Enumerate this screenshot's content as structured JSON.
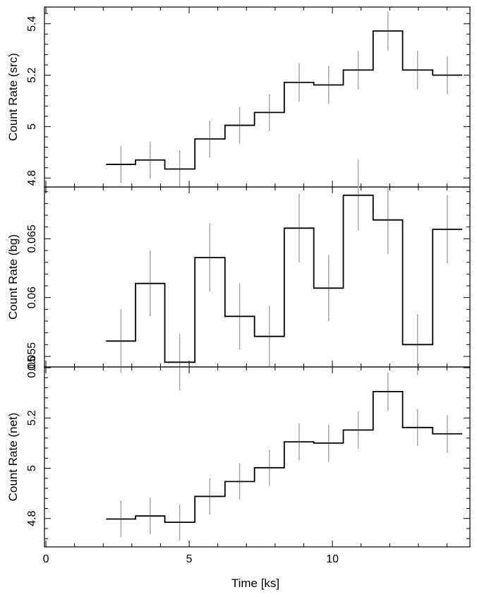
{
  "chart_data": [
    {
      "type": "line",
      "style": "step-with-error-bars",
      "ylabel": "Count Rate (src)",
      "ylim": [
        4.765,
        5.465
      ],
      "yticks": [
        4.8,
        5,
        5.2,
        5.4
      ],
      "ytick_labels": [
        "4.8",
        "5",
        "5.2",
        "5.4"
      ],
      "bin_edges": [
        2.1,
        3.13,
        4.15,
        5.2,
        6.25,
        7.28,
        8.32,
        9.35,
        10.38,
        11.42,
        12.45,
        13.5,
        14.53
      ],
      "x": [
        2.62,
        3.64,
        4.67,
        5.72,
        6.76,
        7.8,
        8.84,
        9.87,
        10.9,
        11.94,
        12.97,
        14.01
      ],
      "values": [
        4.853,
        4.87,
        4.835,
        4.952,
        5.005,
        5.055,
        5.172,
        5.162,
        5.22,
        5.372,
        5.22,
        5.2
      ],
      "errors": [
        0.072,
        0.072,
        0.072,
        0.072,
        0.072,
        0.072,
        0.074,
        0.074,
        0.074,
        0.076,
        0.074,
        0.074
      ]
    },
    {
      "type": "line",
      "style": "step-with-error-bars",
      "ylabel": "Count Rate (bg)",
      "ylim": [
        0.0541,
        0.0694
      ],
      "yticks": [
        0.055,
        0.06,
        0.065
      ],
      "ytick_labels": [
        "0.055",
        "0.06",
        "0.065"
      ],
      "overlap_tick_label": "0.05",
      "bin_edges": [
        2.1,
        3.13,
        4.15,
        5.2,
        6.25,
        7.28,
        8.32,
        9.35,
        10.38,
        11.42,
        12.45,
        13.5,
        14.53
      ],
      "x": [
        2.62,
        3.64,
        4.67,
        5.72,
        6.76,
        7.8,
        8.84,
        9.87,
        10.9,
        11.94,
        12.97,
        14.01
      ],
      "values": [
        0.0563,
        0.0612,
        0.0545,
        0.0634,
        0.0584,
        0.0567,
        0.0659,
        0.0608,
        0.0687,
        0.0666,
        0.056,
        0.0658
      ],
      "errors": [
        0.0027,
        0.0028,
        0.0024,
        0.0029,
        0.0028,
        0.0026,
        0.0029,
        0.0028,
        0.003,
        0.0029,
        0.0026,
        0.0029
      ]
    },
    {
      "type": "line",
      "style": "step-with-error-bars",
      "ylabel": "Count Rate (net)",
      "xlabel": "Time [ks]",
      "xlim": [
        -0.05,
        14.8
      ],
      "xticks": [
        0,
        5,
        10
      ],
      "xtick_labels": [
        "0",
        "5",
        "10"
      ],
      "ylim": [
        4.687,
        5.403
      ],
      "yticks": [
        4.8,
        5,
        5.2
      ],
      "ytick_labels": [
        "4.8",
        "5",
        "5.2"
      ],
      "bin_edges": [
        2.1,
        3.13,
        4.15,
        5.2,
        6.25,
        7.28,
        8.32,
        9.35,
        10.38,
        11.42,
        12.45,
        13.5,
        14.53
      ],
      "x": [
        2.62,
        3.64,
        4.67,
        5.72,
        6.76,
        7.8,
        8.84,
        9.87,
        10.9,
        11.94,
        12.97,
        14.01
      ],
      "values": [
        4.798,
        4.81,
        4.785,
        4.888,
        4.947,
        5.002,
        5.105,
        5.1,
        5.152,
        5.305,
        5.162,
        5.137
      ],
      "errors": [
        0.072,
        0.072,
        0.072,
        0.072,
        0.072,
        0.072,
        0.074,
        0.074,
        0.074,
        0.076,
        0.074,
        0.074
      ]
    }
  ]
}
